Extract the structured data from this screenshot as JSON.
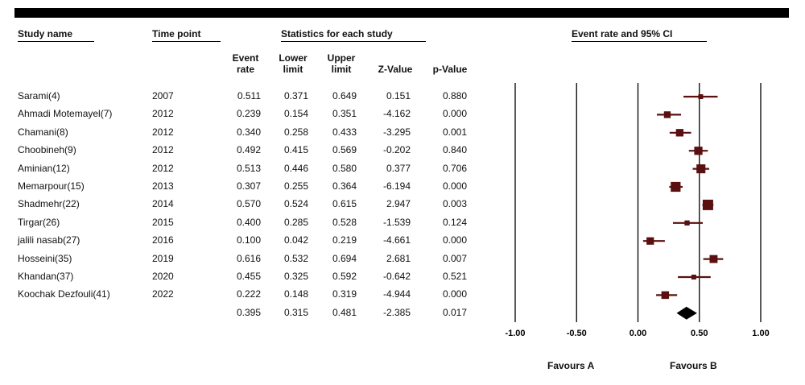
{
  "headers": {
    "study": "Study name",
    "time": "Time point",
    "stats": "Statistics for each study",
    "plot": "Event rate and 95% CI"
  },
  "subheaders": {
    "event_rate": "Event\nrate",
    "lower": "Lower\nlimit",
    "upper": "Upper\nlimit",
    "z": "Z-Value",
    "p": "p-Value"
  },
  "favours": {
    "left": "Favours A",
    "right": "Favours B"
  },
  "chart_data": {
    "type": "forest",
    "title": "Event rate and 95% CI",
    "xlim": [
      -1.0,
      1.0
    ],
    "xticks": [
      "-1.00",
      "-0.50",
      "0.00",
      "0.50",
      "1.00"
    ],
    "xtick_values": [
      -1.0,
      -0.5,
      0.0,
      0.5,
      1.0
    ],
    "colors": {
      "study": "#5a1010",
      "summary": "#000000"
    },
    "studies": [
      {
        "name": "Sarami(4)",
        "time": "2007",
        "event_rate": "0.511",
        "lower": "0.371",
        "upper": "0.649",
        "z": "0.151",
        "p": "0.880",
        "er": 0.511,
        "lo": 0.371,
        "hi": 0.649
      },
      {
        "name": "Ahmadi Motemayel(7)",
        "time": "2012",
        "event_rate": "0.239",
        "lower": "0.154",
        "upper": "0.351",
        "z": "-4.162",
        "p": "0.000",
        "er": 0.239,
        "lo": 0.154,
        "hi": 0.351
      },
      {
        "name": "Chamani(8)",
        "time": "2012",
        "event_rate": "0.340",
        "lower": "0.258",
        "upper": "0.433",
        "z": "-3.295",
        "p": "0.001",
        "er": 0.34,
        "lo": 0.258,
        "hi": 0.433
      },
      {
        "name": "Choobineh(9)",
        "time": "2012",
        "event_rate": "0.492",
        "lower": "0.415",
        "upper": "0.569",
        "z": "-0.202",
        "p": "0.840",
        "er": 0.492,
        "lo": 0.415,
        "hi": 0.569
      },
      {
        "name": "Aminian(12)",
        "time": "2012",
        "event_rate": "0.513",
        "lower": "0.446",
        "upper": "0.580",
        "z": "0.377",
        "p": "0.706",
        "er": 0.513,
        "lo": 0.446,
        "hi": 0.58
      },
      {
        "name": "Memarpour(15)",
        "time": "2013",
        "event_rate": "0.307",
        "lower": "0.255",
        "upper": "0.364",
        "z": "-6.194",
        "p": "0.000",
        "er": 0.307,
        "lo": 0.255,
        "hi": 0.364
      },
      {
        "name": "Shadmehr(22)",
        "time": "2014",
        "event_rate": "0.570",
        "lower": "0.524",
        "upper": "0.615",
        "z": "2.947",
        "p": "0.003",
        "er": 0.57,
        "lo": 0.524,
        "hi": 0.615
      },
      {
        "name": "Tirgar(26)",
        "time": "2015",
        "event_rate": "0.400",
        "lower": "0.285",
        "upper": "0.528",
        "z": "-1.539",
        "p": "0.124",
        "er": 0.4,
        "lo": 0.285,
        "hi": 0.528
      },
      {
        "name": "jalili nasab(27)",
        "time": "2016",
        "event_rate": "0.100",
        "lower": "0.042",
        "upper": "0.219",
        "z": "-4.661",
        "p": "0.000",
        "er": 0.1,
        "lo": 0.042,
        "hi": 0.219
      },
      {
        "name": "Hosseini(35)",
        "time": "2019",
        "event_rate": "0.616",
        "lower": "0.532",
        "upper": "0.694",
        "z": "2.681",
        "p": "0.007",
        "er": 0.616,
        "lo": 0.532,
        "hi": 0.694
      },
      {
        "name": "Khandan(37)",
        "time": "2020",
        "event_rate": "0.455",
        "lower": "0.325",
        "upper": "0.592",
        "z": "-0.642",
        "p": "0.521",
        "er": 0.455,
        "lo": 0.325,
        "hi": 0.592
      },
      {
        "name": "Koochak Dezfouli(41)",
        "time": "2022",
        "event_rate": "0.222",
        "lower": "0.148",
        "upper": "0.319",
        "z": "-4.944",
        "p": "0.000",
        "er": 0.222,
        "lo": 0.148,
        "hi": 0.319
      }
    ],
    "summary": {
      "event_rate": "0.395",
      "lower": "0.315",
      "upper": "0.481",
      "z": "-2.385",
      "p": "0.017",
      "er": 0.395,
      "lo": 0.315,
      "hi": 0.481
    }
  }
}
